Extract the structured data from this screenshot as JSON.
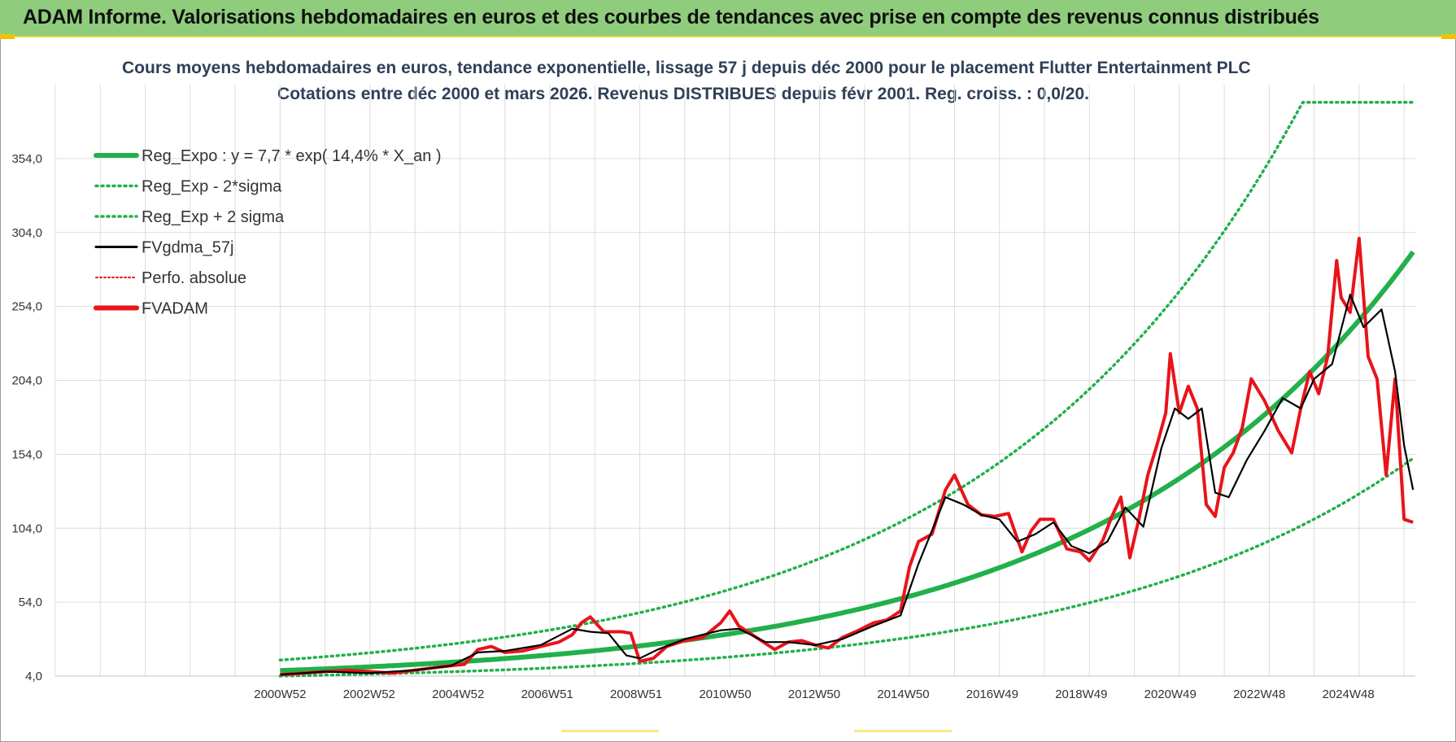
{
  "header": {
    "banner_title": "ADAM Informe. Valorisations hebdomadaires en euros et des courbes de tendances avec prise en compte des revenus connus distribués"
  },
  "colors": {
    "banner_bg": "#8fcd7d",
    "reg_expo": "#22b04b",
    "fvgdma": "#000000",
    "fvadam": "#e8141a",
    "perfo": "#e8141a"
  },
  "chart_data": {
    "type": "line",
    "title_line1": "Cours moyens hebdomadaires en euros, tendance exponentielle, lissage 57 j depuis déc 2000 pour le placement Flutter Entertainment PLC",
    "title_line2": "Cotations entre déc 2000 et mars 2026.  Revenus DISTRIBUES depuis févr 2001.  Reg. croiss. : 0,0/20.",
    "xlabel": "",
    "ylabel": "",
    "x_tick_labels": [
      "2000W52",
      "2002W52",
      "2004W52",
      "2006W51",
      "2008W51",
      "2010W50",
      "2012W50",
      "2014W50",
      "2016W49",
      "2018W49",
      "2020W49",
      "2022W48",
      "2024W48"
    ],
    "y_tick_labels": [
      "4,0",
      "54,0",
      "104,0",
      "154,0",
      "204,0",
      "254,0",
      "304,0",
      "354,0"
    ],
    "ylim": [
      4,
      404
    ],
    "xlim": [
      1996.0,
      2026.25
    ],
    "grid": true,
    "legend_position": "top-left",
    "legend": [
      {
        "name": "Reg_Expo : y = 7,7 * exp( 14,4% *  X_an )",
        "style": "solid-thick",
        "color": "#22b04b"
      },
      {
        "name": "Reg_Exp - 2*sigma",
        "style": "dotted",
        "color": "#22b04b"
      },
      {
        "name": "Reg_Exp + 2 sigma",
        "style": "dotted",
        "color": "#22b04b"
      },
      {
        "name": "FVgdma_57j",
        "style": "solid",
        "color": "#000000"
      },
      {
        "name": "Perfo. absolue",
        "style": "dotted-thin",
        "color": "#e8141a"
      },
      {
        "name": "FVADAM",
        "style": "solid-thick",
        "color": "#e8141a"
      }
    ],
    "regression": {
      "a": 7.7,
      "b": 0.144,
      "x0": 2000.98,
      "lower_factor": 0.52,
      "upper_factor": 1.92,
      "cap": 392
    },
    "fvadam": {
      "x": [
        2001.0,
        2001.5,
        2002.0,
        2002.5,
        2003.0,
        2003.5,
        2004.0,
        2004.5,
        2004.8,
        2005.1,
        2005.4,
        2005.7,
        2006.0,
        2006.4,
        2006.8,
        2007.2,
        2007.5,
        2007.7,
        2007.9,
        2008.2,
        2008.6,
        2008.8,
        2009.0,
        2009.3,
        2009.6,
        2010.0,
        2010.4,
        2010.8,
        2011.0,
        2011.2,
        2011.5,
        2011.8,
        2012.0,
        2012.3,
        2012.6,
        2012.9,
        2013.2,
        2013.5,
        2013.8,
        2014.2,
        2014.5,
        2014.8,
        2015.0,
        2015.2,
        2015.5,
        2015.8,
        2016.0,
        2016.3,
        2016.6,
        2016.9,
        2017.2,
        2017.5,
        2017.7,
        2017.9,
        2018.2,
        2018.5,
        2018.8,
        2019.0,
        2019.3,
        2019.5,
        2019.7,
        2019.9,
        2020.1,
        2020.3,
        2020.5,
        2020.7,
        2020.8,
        2021.0,
        2021.2,
        2021.4,
        2021.6,
        2021.8,
        2022.0,
        2022.2,
        2022.4,
        2022.6,
        2022.9,
        2023.2,
        2023.5,
        2023.7,
        2023.9,
        2024.1,
        2024.3,
        2024.5,
        2024.6,
        2024.8,
        2025.0,
        2025.2,
        2025.4,
        2025.6,
        2025.8,
        2026.0,
        2026.2
      ],
      "y": [
        5,
        6,
        7,
        8,
        7,
        6,
        8,
        10,
        11,
        12,
        22,
        24,
        20,
        21,
        24,
        27,
        32,
        40,
        44,
        34,
        34,
        33,
        14,
        16,
        24,
        28,
        30,
        40,
        48,
        38,
        32,
        26,
        22,
        27,
        28,
        25,
        23,
        30,
        34,
        40,
        42,
        48,
        78,
        95,
        100,
        130,
        140,
        120,
        113,
        112,
        114,
        88,
        102,
        110,
        110,
        90,
        88,
        82,
        96,
        112,
        125,
        84,
        110,
        140,
        160,
        182,
        222,
        182,
        200,
        185,
        120,
        112,
        145,
        155,
        172,
        205,
        190,
        170,
        155,
        185,
        210,
        195,
        220,
        285,
        260,
        250,
        300,
        220,
        205,
        140,
        205,
        110,
        108
      ]
    },
    "fvgdma_57j": {
      "x": [
        2001.0,
        2002.0,
        2003.0,
        2004.0,
        2004.8,
        2005.4,
        2006.0,
        2006.8,
        2007.5,
        2007.9,
        2008.3,
        2008.7,
        2009.0,
        2009.4,
        2010.0,
        2010.8,
        2011.2,
        2011.8,
        2012.3,
        2012.9,
        2013.5,
        2014.2,
        2014.8,
        2015.2,
        2015.8,
        2016.2,
        2016.6,
        2017.0,
        2017.4,
        2017.8,
        2018.2,
        2018.6,
        2019.0,
        2019.4,
        2019.8,
        2020.2,
        2020.6,
        2020.9,
        2021.2,
        2021.5,
        2021.8,
        2022.1,
        2022.5,
        2022.9,
        2023.3,
        2023.7,
        2024.0,
        2024.4,
        2024.8,
        2025.1,
        2025.5,
        2025.8,
        2026.0,
        2026.2
      ],
      "y": [
        5,
        7,
        6,
        8,
        11,
        20,
        21,
        25,
        36,
        34,
        33,
        18,
        16,
        22,
        29,
        35,
        36,
        27,
        27,
        25,
        29,
        38,
        45,
        80,
        125,
        120,
        113,
        110,
        95,
        100,
        108,
        92,
        87,
        95,
        118,
        105,
        158,
        185,
        178,
        185,
        128,
        125,
        150,
        170,
        192,
        185,
        205,
        215,
        262,
        240,
        252,
        210,
        160,
        130
      ]
    }
  }
}
